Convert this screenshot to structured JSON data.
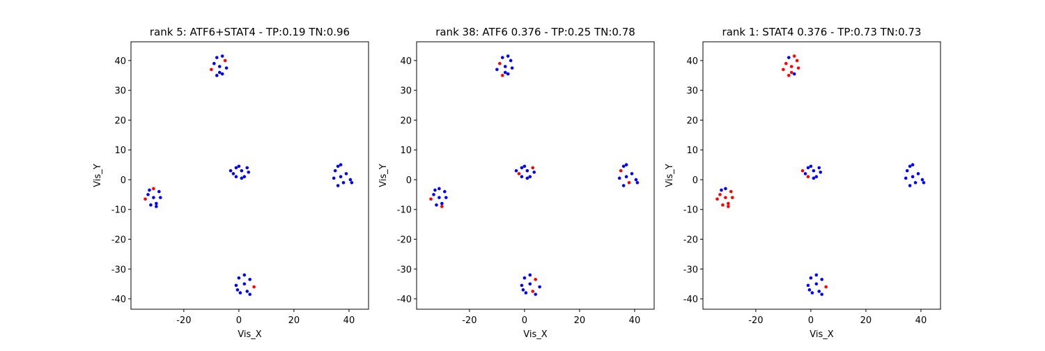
{
  "chart_data": [
    {
      "type": "scatter",
      "title": "rank 5: ATF6+STAT4 - TP:0.19 TN:0.96",
      "xlabel": "Vis_X",
      "ylabel": "Vis_Y",
      "xlim": [
        -39.2,
        47.1
      ],
      "ylim": [
        -43.5,
        46.3
      ],
      "xticks": [
        -20,
        0,
        20,
        40
      ],
      "yticks": [
        -40,
        -30,
        -20,
        -10,
        0,
        10,
        20,
        30,
        40
      ],
      "series": [
        {
          "color": "#0000ff",
          "x": [
            -31,
            -29,
            -33,
            -30,
            -32,
            -28.5,
            -30,
            -32.5,
            -7,
            -9,
            -6,
            -8,
            -4.5,
            -6,
            -8,
            -7,
            1,
            3,
            -1,
            2,
            -2,
            3.5,
            -3,
            0,
            1,
            -1,
            37,
            39,
            35,
            38,
            36,
            40.5,
            34.5,
            37,
            41,
            36,
            2,
            4,
            0,
            3,
            0.5,
            -1,
            2,
            4,
            -0.5
          ],
          "values": [
            -6,
            -4,
            -5,
            -8,
            -8.5,
            -6,
            -9,
            -3.5,
            38,
            39,
            35.5,
            35,
            37.5,
            41.5,
            41,
            36,
            3,
            4,
            4,
            1,
            2,
            2.5,
            3,
            4.5,
            0.5,
            1,
            1,
            2,
            3,
            -1,
            -2,
            0,
            0.5,
            5,
            -1,
            4.5,
            -35,
            -33.5,
            -33,
            -37.5,
            -38,
            -35.5,
            -32,
            -38.5,
            -37
          ]
        },
        {
          "color": "#ff0000",
          "x": [
            -34,
            -31,
            -10,
            -5,
            5.5
          ],
          "values": [
            -6.5,
            -3,
            37,
            40,
            -36
          ]
        }
      ]
    },
    {
      "type": "scatter",
      "title": "rank 38: ATF6 0.376 - TP:0.25 TN:0.78",
      "xlabel": "Vis_X",
      "ylabel": "Vis_Y",
      "xlim": [
        -39.2,
        47.1
      ],
      "ylim": [
        -43.5,
        46.3
      ],
      "xticks": [
        -20,
        0,
        20,
        40
      ],
      "yticks": [
        -40,
        -30,
        -20,
        -10,
        0,
        10,
        20,
        30,
        40
      ],
      "series": [
        {
          "color": "#0000ff",
          "x": [
            -31,
            -29,
            -33,
            -30,
            -32,
            -28.5,
            -31,
            -32.5,
            -7,
            -5,
            -6,
            -4.5,
            -10,
            -6,
            -8,
            -7,
            1,
            -1,
            2,
            3.5,
            -3,
            0,
            1,
            -1,
            37,
            39,
            36,
            40.5,
            34.5,
            37,
            41,
            36,
            2,
            0,
            0.5,
            5.5,
            -1,
            2,
            4,
            -0.5
          ],
          "values": [
            -6,
            -4,
            -5,
            -8,
            -8.5,
            -6,
            -3,
            -3.5,
            38,
            40,
            35.5,
            37.5,
            37,
            41.5,
            41,
            36,
            3,
            4,
            1,
            2.5,
            3,
            4.5,
            0.5,
            1,
            1,
            2,
            -2,
            0,
            0.5,
            5,
            -1,
            4.5,
            -35,
            -33,
            -38,
            -36,
            -35.5,
            -32,
            -38.5,
            -37
          ]
        },
        {
          "color": "#ff0000",
          "x": [
            -34,
            -30,
            -9,
            -8,
            -2,
            3,
            35,
            38,
            3,
            4
          ],
          "values": [
            -6.5,
            -9,
            39,
            35,
            2,
            4,
            3,
            -1,
            -37.5,
            -33.5
          ]
        }
      ]
    },
    {
      "type": "scatter",
      "title": "rank 1: STAT4 0.376 - TP:0.73 TN:0.73",
      "xlabel": "Vis_X",
      "ylabel": "Vis_Y",
      "xlim": [
        -39.2,
        47.1
      ],
      "ylim": [
        -43.5,
        46.3
      ],
      "xticks": [
        -20,
        0,
        20,
        40
      ],
      "yticks": [
        -40,
        -30,
        -20,
        -10,
        0,
        10,
        20,
        30,
        40
      ],
      "series": [
        {
          "color": "#0000ff",
          "x": [
            -31,
            -32.5,
            -6,
            -8,
            1,
            3,
            -1,
            2,
            -2,
            3.5,
            0,
            1,
            37,
            39,
            35,
            38,
            36,
            40.5,
            34.5,
            37,
            41,
            36,
            2,
            4,
            0,
            3,
            0.5,
            -1,
            2,
            4,
            -0.5
          ],
          "values": [
            -3,
            -3.5,
            35.5,
            41,
            3,
            4,
            4,
            1,
            2,
            2.5,
            4.5,
            0.5,
            1,
            2,
            3,
            -1,
            -2,
            0,
            0.5,
            5,
            -1,
            4.5,
            -35,
            -33.5,
            -33,
            -37.5,
            -38,
            -35.5,
            -32,
            -38.5,
            -37
          ]
        },
        {
          "color": "#ff0000",
          "x": [
            -31,
            -29,
            -33,
            -30,
            -32,
            -28.5,
            -34,
            -30,
            -7,
            -5,
            -9,
            -8,
            -4.5,
            -10,
            -6,
            -7,
            -3,
            -1,
            5.5
          ],
          "values": [
            -6,
            -4,
            -5,
            -8,
            -8.5,
            -6,
            -6.5,
            -9,
            38,
            40,
            39,
            35,
            37.5,
            37,
            41.5,
            36,
            3,
            1,
            -36
          ]
        }
      ]
    }
  ]
}
